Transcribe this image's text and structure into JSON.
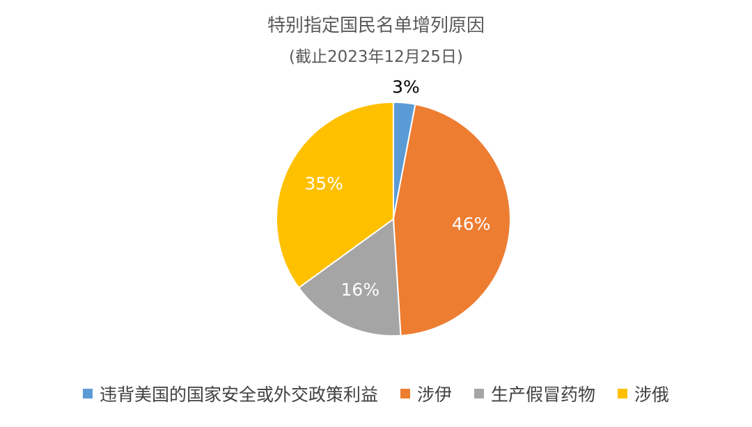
{
  "chart_data": {
    "type": "pie",
    "title": "特别指定国民名单增列原因",
    "subtitle": "(截止2023年12月25日)",
    "categories": [
      "违背美国的国家安全或外交政策利益",
      "涉伊",
      "生产假冒药物",
      "涉俄"
    ],
    "values": [
      3,
      46,
      16,
      35
    ],
    "data_labels": [
      "3%",
      "46%",
      "16%",
      "35%"
    ],
    "colors": [
      "#5B9BD5",
      "#ED7D31",
      "#A5A5A5",
      "#FFC000"
    ],
    "legend_position": "bottom"
  }
}
